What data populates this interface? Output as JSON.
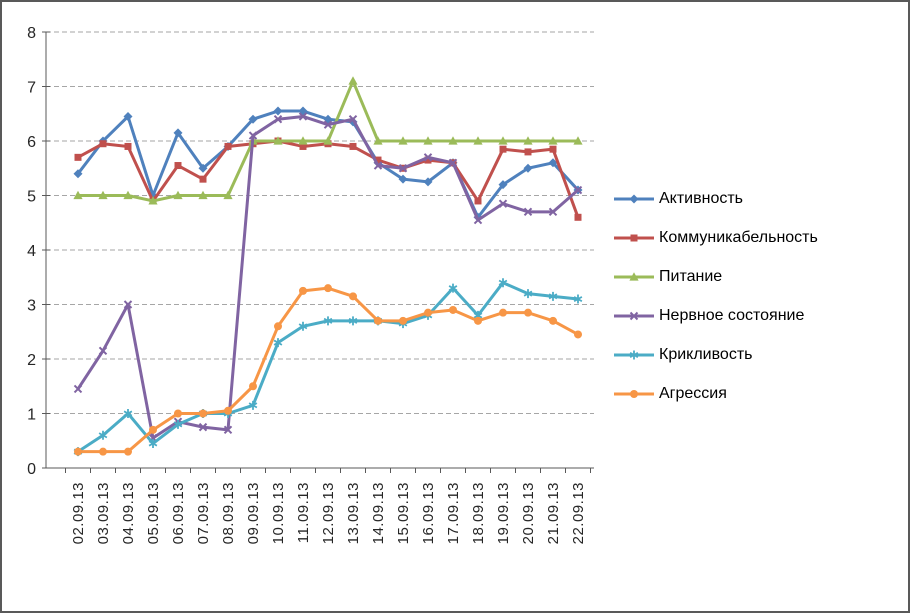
{
  "chart_data": {
    "type": "line",
    "title": "",
    "xlabel": "",
    "ylabel": "",
    "ylim": [
      0,
      8
    ],
    "ytick_step": 1,
    "grid": "horizontal-dashed",
    "legend_position": "right",
    "axis_color": "#595959",
    "grid_color": "#a6a6a6",
    "x": [
      "02.09.13",
      "03.09.13",
      "04.09.13",
      "05.09.13",
      "06.09.13",
      "07.09.13",
      "08.09.13",
      "09.09.13",
      "10.09.13",
      "11.09.13",
      "12.09.13",
      "13.09.13",
      "14.09.13",
      "15.09.13",
      "16.09.13",
      "17.09.13",
      "18.09.13",
      "19.09.13",
      "20.09.13",
      "21.09.13",
      "22.09.13"
    ],
    "series": [
      {
        "name": "Активность",
        "color": "#4F81BD",
        "marker": "diamond",
        "values": [
          5.4,
          6.0,
          6.45,
          5.0,
          6.15,
          5.5,
          5.9,
          6.4,
          6.55,
          6.55,
          6.4,
          6.35,
          5.6,
          5.3,
          5.25,
          5.6,
          4.6,
          5.2,
          5.5,
          5.6,
          5.1
        ]
      },
      {
        "name": "Коммуникабельность",
        "color": "#C0504D",
        "marker": "square",
        "values": [
          5.7,
          5.95,
          5.9,
          4.9,
          5.55,
          5.3,
          5.9,
          5.95,
          6.0,
          5.9,
          5.95,
          5.9,
          5.65,
          5.5,
          5.65,
          5.6,
          4.9,
          5.85,
          5.8,
          5.85,
          4.6
        ]
      },
      {
        "name": "Питание",
        "color": "#9BBB59",
        "marker": "triangle",
        "values": [
          5.0,
          5.0,
          5.0,
          4.9,
          5.0,
          5.0,
          5.0,
          6.0,
          6.0,
          6.0,
          6.0,
          7.1,
          6.0,
          6.0,
          6.0,
          6.0,
          6.0,
          6.0,
          6.0,
          6.0,
          6.0
        ]
      },
      {
        "name": "Нервное состояние",
        "color": "#8064A2",
        "marker": "x",
        "values": [
          1.45,
          2.15,
          3.0,
          0.55,
          0.85,
          0.75,
          0.7,
          6.1,
          6.4,
          6.45,
          6.3,
          6.4,
          5.55,
          5.5,
          5.7,
          5.6,
          4.55,
          4.85,
          4.7,
          4.7,
          5.1
        ]
      },
      {
        "name": "Крикливость",
        "color": "#4BACC6",
        "marker": "asterisk",
        "values": [
          0.3,
          0.6,
          1.0,
          0.45,
          0.8,
          1.0,
          1.0,
          1.15,
          2.3,
          2.6,
          2.7,
          2.7,
          2.7,
          2.65,
          2.8,
          3.3,
          2.8,
          3.4,
          3.2,
          3.15,
          3.1
        ]
      },
      {
        "name": "Агрессия",
        "color": "#F79646",
        "marker": "circle",
        "values": [
          0.3,
          0.3,
          0.3,
          0.7,
          1.0,
          1.0,
          1.05,
          1.5,
          2.6,
          3.25,
          3.3,
          3.15,
          2.7,
          2.7,
          2.85,
          2.9,
          2.7,
          2.85,
          2.85,
          2.7,
          2.45
        ]
      }
    ]
  }
}
